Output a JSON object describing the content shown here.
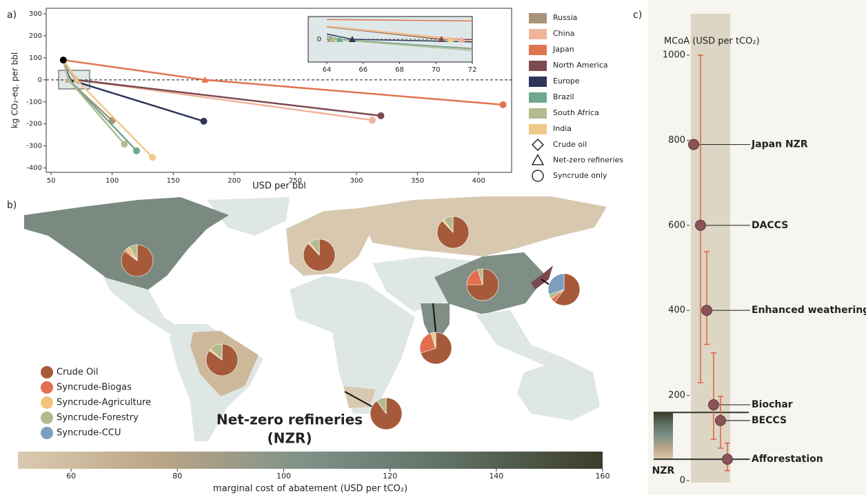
{
  "chart_data": [
    {
      "type": "line",
      "label": "a)",
      "xlabel": "USD per bbl",
      "ylabel": "kg CO₂-eq. per bbl",
      "xlim": [
        46,
        427
      ],
      "ylim": [
        -420,
        325
      ],
      "xticks": [
        50,
        100,
        150,
        200,
        250,
        300,
        350,
        400
      ],
      "yticks": [
        -400,
        -300,
        -200,
        -100,
        0,
        100,
        200,
        300
      ],
      "crude_oil": {
        "x": 60,
        "y": 90,
        "color": "#000000"
      },
      "series": [
        {
          "name": "Russia",
          "color": "#a89379",
          "x": [
            60,
            64.2,
            100
          ],
          "values": [
            90,
            0,
            -185
          ]
        },
        {
          "name": "China",
          "color": "#f0b49a",
          "x": [
            60,
            71.4,
            313
          ],
          "values": [
            90,
            0,
            -183
          ]
        },
        {
          "name": "Japan",
          "color": "#e07450",
          "x": [
            60,
            176,
            420
          ],
          "values": [
            90,
            0,
            -113
          ]
        },
        {
          "name": "North America",
          "color": "#7b4a50",
          "x": [
            60,
            70.3,
            320
          ],
          "values": [
            90,
            0,
            -163
          ]
        },
        {
          "name": "Europe",
          "color": "#2e3558",
          "x": [
            60,
            65.4,
            175
          ],
          "values": [
            90,
            0,
            -188
          ]
        },
        {
          "name": "Brazil",
          "color": "#6ea88f",
          "x": [
            60,
            64.7,
            120
          ],
          "values": [
            90,
            0,
            -322
          ]
        },
        {
          "name": "South Africa",
          "color": "#b5b98e",
          "x": [
            60,
            64.3,
            110
          ],
          "values": [
            90,
            0,
            -292
          ]
        },
        {
          "name": "India",
          "color": "#f0c98a",
          "x": [
            60,
            70.8,
            133
          ],
          "values": [
            90,
            0,
            -352
          ]
        }
      ],
      "markers": [
        {
          "label": "Crude oil",
          "shape": "diamond"
        },
        {
          "label": "Net-zero refineries",
          "shape": "triangle"
        },
        {
          "label": "Syncrude only",
          "shape": "circle"
        }
      ],
      "inset": {
        "xlim": [
          64,
          72
        ],
        "ylim": [
          -100,
          100
        ],
        "xticks": [
          64,
          66,
          68,
          70,
          72
        ],
        "yticks": [
          0
        ]
      }
    },
    {
      "type": "pie",
      "label": "b)",
      "annotation": [
        "Net-zero refineries",
        "(NZR)"
      ],
      "series": [
        {
          "name": "Crude Oil",
          "color": "#a65a3a"
        },
        {
          "name": "Syncrude-Biogas",
          "color": "#e2704f"
        },
        {
          "name": "Syncrude-Agriculture",
          "color": "#f2c27b"
        },
        {
          "name": "Syncrude-Forestry",
          "color": "#b3b98c"
        },
        {
          "name": "Syncrude-CCU",
          "color": "#7e9ec0"
        }
      ],
      "pies": [
        {
          "values": [
            85,
            2,
            5,
            8,
            0
          ]
        },
        {
          "values": [
            88,
            0,
            2,
            10,
            0
          ]
        },
        {
          "values": [
            88,
            0,
            2,
            10,
            0
          ]
        },
        {
          "values": [
            75,
            20,
            0,
            5,
            0
          ]
        },
        {
          "values": [
            60,
            5,
            0,
            5,
            30
          ]
        },
        {
          "values": [
            70,
            25,
            3,
            2,
            0
          ]
        },
        {
          "values": [
            85,
            0,
            2,
            13,
            0
          ]
        },
        {
          "values": [
            90,
            0,
            0,
            10,
            0
          ]
        }
      ],
      "colorbar": {
        "label": "marginal cost of abatement (USD per tCO₂)",
        "xlim": [
          50,
          160
        ],
        "xticks": [
          60,
          80,
          100,
          120,
          140,
          160
        ],
        "colors": [
          "#dccab0",
          "#b8a486",
          "#7d9188",
          "#5e6e62",
          "#3b3c28"
        ]
      }
    },
    {
      "type": "errorbar",
      "label": "c)",
      "ylabel": "MCoA (USD per tCO₂)",
      "ylim": [
        0,
        1000
      ],
      "yticks": [
        0,
        200,
        400,
        600,
        800,
        1000
      ],
      "color": "#e0603e",
      "dot_color": "#8a5358",
      "categories": [
        "Japan NZR",
        "DACCS",
        "Enhanced weathering",
        "Biochar",
        "BECCS",
        "Afforestation"
      ],
      "values": [
        790,
        600,
        400,
        178,
        141,
        50
      ],
      "err_low": [
        null,
        230,
        320,
        97,
        76,
        23
      ],
      "err_high": [
        null,
        1000,
        538,
        300,
        198,
        88
      ],
      "band": {
        "label": "NZR",
        "range": [
          50,
          160
        ]
      }
    }
  ]
}
